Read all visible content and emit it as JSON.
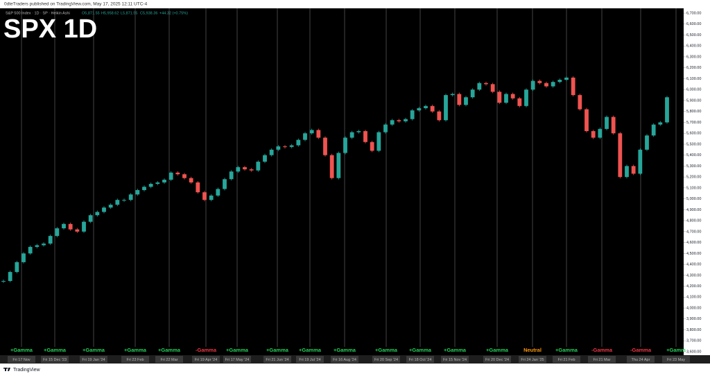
{
  "header": {
    "publisher": "0dteTraders published on TradingView.com, May 17, 2025 12:11 UTC-4"
  },
  "footer": {
    "brand": "TradingView"
  },
  "chart_data": {
    "type": "candlestick",
    "title": "SPX 1D",
    "symbol": "S&P 500 Index · 1D · SP · Heikin Ashi",
    "ohlc_legend": [
      "O5,871.55",
      "H5,958.62",
      "L5,871.55",
      "C5,938.36",
      "+44.32 (+0.75%)"
    ],
    "up_color": "#26a69a",
    "down_color": "#ef5350",
    "values": [
      4248,
      4330,
      4420,
      4500,
      4560,
      4575,
      4590,
      4660,
      4730,
      4770,
      4720,
      4700,
      4790,
      4850,
      4880,
      4920,
      4946,
      4990,
      4990,
      5040,
      5080,
      5110,
      5137,
      5150,
      5175,
      5240,
      5225,
      5190,
      5150,
      5060,
      4990,
      5030,
      5090,
      5180,
      5250,
      5290,
      5270,
      5260,
      5340,
      5400,
      5450,
      5480,
      5475,
      5490,
      5540,
      5600,
      5630,
      5560,
      5400,
      5190,
      5420,
      5560,
      5610,
      5620,
      5520,
      5440,
      5610,
      5680,
      5720,
      5710,
      5730,
      5810,
      5830,
      5850,
      5800,
      5720,
      5950,
      5960,
      5860,
      5930,
      6000,
      6060,
      6050,
      5980,
      5880,
      5960,
      5920,
      5850,
      6000,
      6080,
      6060,
      6030,
      6070,
      6090,
      6110,
      5950,
      5820,
      5620,
      5560,
      5640,
      5750,
      5600,
      5200,
      5300,
      5230,
      5450,
      5580,
      5680,
      5700,
      5930
    ],
    "ylim": [
      3600,
      6700
    ],
    "yticks": [
      {
        "value": 3600,
        "label": "3,600.00"
      },
      {
        "value": 3700,
        "label": "3,700.00"
      },
      {
        "value": 3800,
        "label": "3,800.00"
      },
      {
        "value": 3900,
        "label": "3,900.00"
      },
      {
        "value": 4000,
        "label": "4,000.00"
      },
      {
        "value": 4100,
        "label": "4,100.00"
      },
      {
        "value": 4200,
        "label": "4,200.00"
      },
      {
        "value": 4300,
        "label": "4,300.00"
      },
      {
        "value": 4400,
        "label": "4,400.00"
      },
      {
        "value": 4500,
        "label": "4,500.00"
      },
      {
        "value": 4600,
        "label": "4,600.00"
      },
      {
        "value": 4700,
        "label": "4,700.00"
      },
      {
        "value": 4800,
        "label": "4,800.00"
      },
      {
        "value": 4900,
        "label": "4,900.00"
      },
      {
        "value": 5000,
        "label": "5,000.00"
      },
      {
        "value": 5100,
        "label": "5,100.00"
      },
      {
        "value": 5200,
        "label": "5,200.00"
      },
      {
        "value": 5300,
        "label": "5,300.00"
      },
      {
        "value": 5400,
        "label": "5,400.00"
      },
      {
        "value": 5500,
        "label": "5,500.00"
      },
      {
        "value": 5600,
        "label": "5,600.00"
      },
      {
        "value": 5700,
        "label": "5,700.00"
      },
      {
        "value": 5800,
        "label": "5,800.00"
      },
      {
        "value": 5900,
        "label": "5,900.00"
      },
      {
        "value": 6000,
        "label": "6,000.00"
      },
      {
        "value": 6100,
        "label": "6,100.00"
      },
      {
        "value": 6200,
        "label": "6,200.00"
      },
      {
        "value": 6300,
        "label": "6,300.00"
      },
      {
        "value": 6400,
        "label": "6,400.00"
      },
      {
        "value": 6500,
        "label": "6,500.00"
      },
      {
        "value": 6600,
        "label": "6,600.00"
      },
      {
        "value": 6700,
        "label": "6,700.00"
      }
    ],
    "events": [
      {
        "date": "Fri 17 Nov",
        "gamma": "+Gamma"
      },
      {
        "date": "Fri 15 Dec '23",
        "gamma": "+Gamma"
      },
      {
        "date": "Fri 19 Jan '24",
        "gamma": "+Gamma"
      },
      {
        "date": "Fri 23 Feb",
        "gamma": "+Gamma"
      },
      {
        "date": "Fri 22 Mar",
        "gamma": "+Gamma"
      },
      {
        "date": "Fri 19 Apr '24",
        "gamma": "-Gamma"
      },
      {
        "date": "Fri 17 May '24",
        "gamma": "+Gamma"
      },
      {
        "date": "Fri 21 Jun '24",
        "gamma": "+Gamma"
      },
      {
        "date": "Fri 19 Jul '24",
        "gamma": "+Gamma"
      },
      {
        "date": "Fri 16 Aug '24",
        "gamma": "+Gamma"
      },
      {
        "date": "Fri 20 Sep '24",
        "gamma": "+Gamma"
      },
      {
        "date": "Fri 18 Oct '24",
        "gamma": "+Gamma"
      },
      {
        "date": "Fri 15 Nov '24",
        "gamma": "+Gamma"
      },
      {
        "date": "Fri 20 Dec '24",
        "gamma": "+Gamma"
      },
      {
        "date": "Fri 24 Jan '25",
        "gamma": "Neutral"
      },
      {
        "date": "Fri 21 Feb",
        "gamma": "+Gamma"
      },
      {
        "date": "Fri 21 Mar",
        "gamma": "-Gamma"
      },
      {
        "date": "Thu 24 Apr",
        "gamma": "-Gamma"
      },
      {
        "date": "Fri 23 May",
        "gamma": "+Gamm"
      }
    ],
    "gamma_colors": {
      "+Gamma": "#22d35a",
      "+Gamm": "#22d35a",
      "-Gamma": "#f23645",
      "Neutral": "#ff9800"
    }
  }
}
